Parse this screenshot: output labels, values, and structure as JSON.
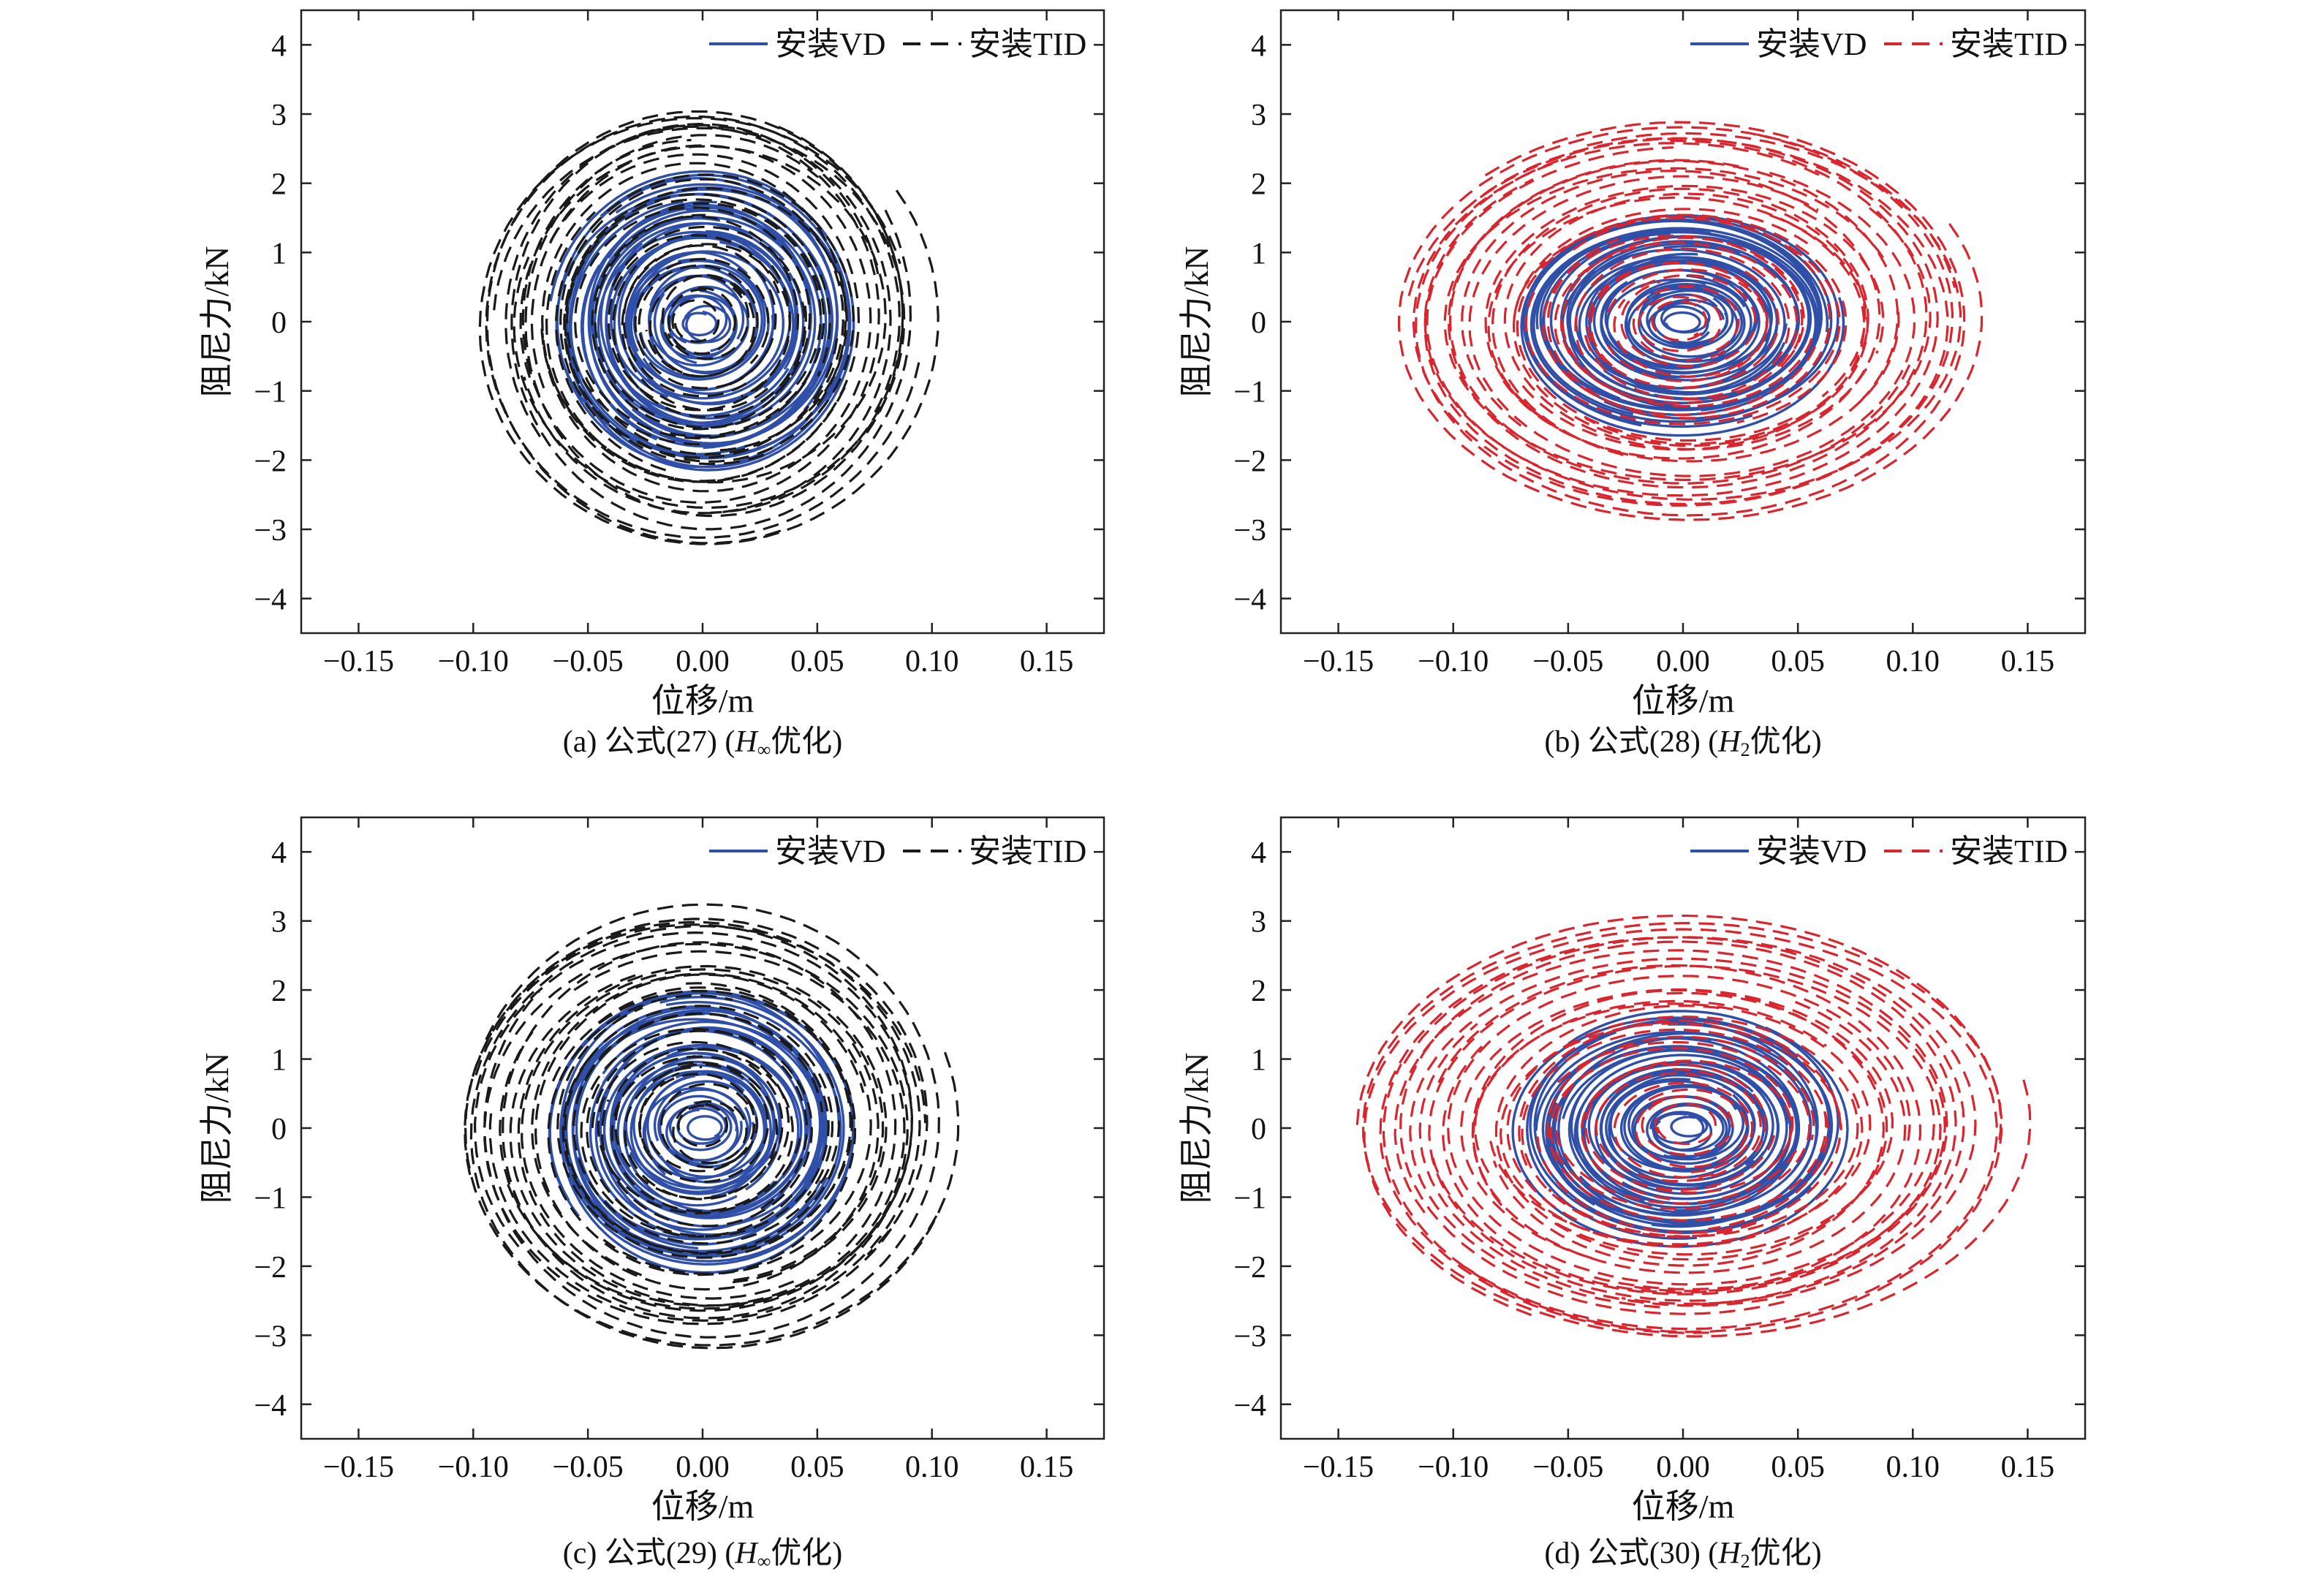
{
  "chart_data": [
    {
      "type": "line",
      "panel": "a",
      "caption": {
        "prefix": "(a) 公式(27) (",
        "var": "H",
        "sub": "∞",
        "suffix": "优化)"
      },
      "xlabel": "位移/m",
      "ylabel": "阻尼力/kN",
      "xlim": [
        -0.175,
        0.175
      ],
      "ylim": [
        -4.5,
        4.5
      ],
      "xticks": [
        -0.15,
        -0.1,
        -0.05,
        0.0,
        0.05,
        0.1,
        0.15
      ],
      "xtick_labels": [
        "−0.15",
        "−0.10",
        "−0.05",
        "0.00",
        "0.05",
        "0.10",
        "0.15"
      ],
      "yticks": [
        -4,
        -3,
        -2,
        -1,
        0,
        1,
        2,
        3,
        4
      ],
      "ytick_labels": [
        "−4",
        "−3",
        "−2",
        "−1",
        "0",
        "1",
        "2",
        "3",
        "4"
      ],
      "legend": {
        "position": "top-right"
      },
      "series": [
        {
          "name": "安装VD",
          "color": "#2f4fa8",
          "dash": "solid",
          "max_x": 0.07,
          "max_y": 2.3,
          "min_x": 0.004,
          "min_y": 0.05,
          "loops": 34,
          "turns": 22
        },
        {
          "name": "安装TID",
          "color": "#1a1a1a",
          "dash": "dashed",
          "max_x": 0.105,
          "max_y": 3.45,
          "min_x": 0.004,
          "min_y": 0.1,
          "loops": 30,
          "turns": 20
        }
      ]
    },
    {
      "type": "line",
      "panel": "b",
      "caption": {
        "prefix": "(b) 公式(28) (",
        "var": "H",
        "sub": "2",
        "suffix": "优化)"
      },
      "xlabel": "位移/m",
      "ylabel": "阻尼力/kN",
      "xlim": [
        -0.175,
        0.175
      ],
      "ylim": [
        -4.5,
        4.5
      ],
      "xticks": [
        -0.15,
        -0.1,
        -0.05,
        0.0,
        0.05,
        0.1,
        0.15
      ],
      "xtick_labels": [
        "−0.15",
        "−0.10",
        "−0.05",
        "0.00",
        "0.05",
        "0.10",
        "0.15"
      ],
      "yticks": [
        -4,
        -3,
        -2,
        -1,
        0,
        1,
        2,
        3,
        4
      ],
      "ytick_labels": [
        "−4",
        "−3",
        "−2",
        "−1",
        "0",
        "1",
        "2",
        "3",
        "4"
      ],
      "legend": {
        "position": "top-right"
      },
      "series": [
        {
          "name": "安装VD",
          "color": "#2f4fa8",
          "dash": "solid",
          "max_x": 0.075,
          "max_y": 1.7,
          "min_x": 0.004,
          "min_y": 0.05,
          "loops": 34,
          "turns": 22
        },
        {
          "name": "安装TID",
          "color": "#d9262e",
          "dash": "dashed",
          "max_x": 0.138,
          "max_y": 3.1,
          "min_x": 0.004,
          "min_y": 0.1,
          "loops": 30,
          "turns": 20
        }
      ]
    },
    {
      "type": "line",
      "panel": "c",
      "caption": {
        "prefix": "(c) 公式(29) (",
        "var": "H",
        "sub": "∞",
        "suffix": "优化)"
      },
      "xlabel": "位移/m",
      "ylabel": "阻尼力/kN",
      "xlim": [
        -0.175,
        0.175
      ],
      "ylim": [
        -4.5,
        4.5
      ],
      "xticks": [
        -0.15,
        -0.1,
        -0.05,
        0.0,
        0.05,
        0.1,
        0.15
      ],
      "xtick_labels": [
        "−0.15",
        "−0.10",
        "−0.05",
        "0.00",
        "0.05",
        "0.10",
        "0.15"
      ],
      "yticks": [
        -4,
        -3,
        -2,
        -1,
        0,
        1,
        2,
        3,
        4
      ],
      "ytick_labels": [
        "−4",
        "−3",
        "−2",
        "−1",
        "0",
        "1",
        "2",
        "3",
        "4"
      ],
      "legend": {
        "position": "top-right"
      },
      "series": [
        {
          "name": "安装VD",
          "color": "#2f4fa8",
          "dash": "solid",
          "max_x": 0.072,
          "max_y": 2.2,
          "min_x": 0.004,
          "min_y": 0.05,
          "loops": 34,
          "turns": 22
        },
        {
          "name": "安装TID",
          "color": "#1a1a1a",
          "dash": "dashed",
          "max_x": 0.115,
          "max_y": 3.45,
          "min_x": 0.004,
          "min_y": 0.1,
          "loops": 30,
          "turns": 20
        }
      ]
    },
    {
      "type": "line",
      "panel": "d",
      "caption": {
        "prefix": "(d) 公式(30) (",
        "var": "H",
        "sub": "2",
        "suffix": "优化)"
      },
      "xlabel": "位移/m",
      "ylabel": "阻尼力/kN",
      "xlim": [
        -0.175,
        0.175
      ],
      "ylim": [
        -4.5,
        4.5
      ],
      "xticks": [
        -0.15,
        -0.1,
        -0.05,
        0.0,
        0.05,
        0.1,
        0.15
      ],
      "xtick_labels": [
        "−0.15",
        "−0.10",
        "−0.05",
        "0.00",
        "0.05",
        "0.10",
        "0.15"
      ],
      "yticks": [
        -4,
        -3,
        -2,
        -1,
        0,
        1,
        2,
        3,
        4
      ],
      "ytick_labels": [
        "−4",
        "−3",
        "−2",
        "−1",
        "0",
        "1",
        "2",
        "3",
        "4"
      ],
      "legend": {
        "position": "top-right"
      },
      "series": [
        {
          "name": "安装VD",
          "color": "#2f4fa8",
          "dash": "solid",
          "max_x": 0.075,
          "max_y": 1.75,
          "min_x": 0.004,
          "min_y": 0.05,
          "loops": 34,
          "turns": 22
        },
        {
          "name": "安装TID",
          "color": "#d9262e",
          "dash": "dashed",
          "max_x": 0.152,
          "max_y": 3.3,
          "min_x": 0.004,
          "min_y": 0.1,
          "loops": 30,
          "turns": 20
        }
      ]
    }
  ]
}
